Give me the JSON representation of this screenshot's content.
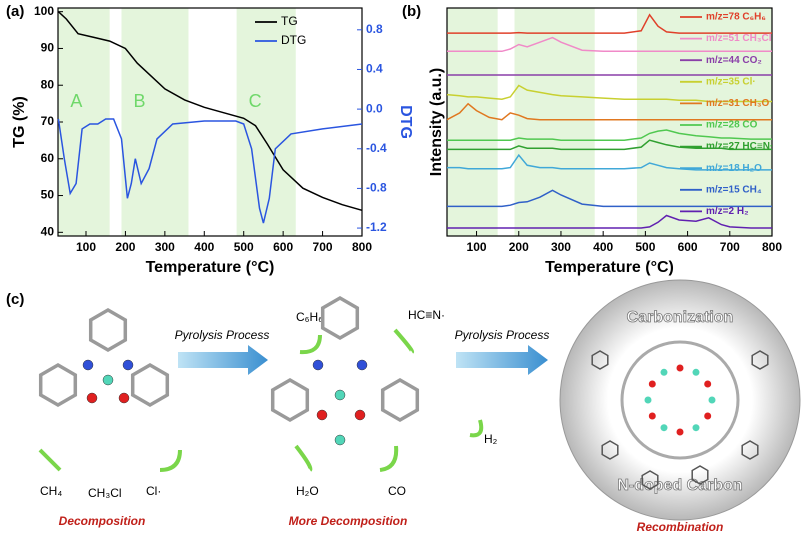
{
  "chart_data": [
    {
      "type": "line",
      "panel_label": "(a)",
      "xlabel": "Temperature (°C)",
      "ylabel": "TG (%)",
      "y2label": "DTG",
      "xlim": [
        29,
        800
      ],
      "ylim": [
        39,
        101
      ],
      "y2lim": [
        -1.28,
        1.02
      ],
      "xticks": [
        100,
        200,
        300,
        400,
        500,
        600,
        700,
        800
      ],
      "yticks": [
        40,
        50,
        60,
        70,
        80,
        90,
        100
      ],
      "y2ticks": [
        -1.2,
        -0.8,
        -0.4,
        {
          "value": 0,
          "label": "0.0"
        },
        0.4,
        0.8
      ],
      "legend": "upper center",
      "shaded_regions": [
        {
          "label": "A",
          "range": [
            30,
            160
          ]
        },
        {
          "label": "B",
          "range": [
            190,
            360
          ]
        },
        {
          "label": "C",
          "range": [
            482,
            632
          ]
        }
      ],
      "series": [
        {
          "name": "TG",
          "color": "#000000",
          "axis": "y",
          "x": [
            30,
            50,
            80,
            120,
            160,
            200,
            230,
            260,
            300,
            350,
            400,
            450,
            500,
            530,
            560,
            600,
            650,
            700,
            750,
            800
          ],
          "values": [
            100,
            98,
            94,
            93,
            92,
            90,
            86,
            83,
            79,
            76,
            74,
            72.5,
            71,
            69,
            64,
            57,
            52,
            49.5,
            47.5,
            46
          ]
        },
        {
          "name": "DTG",
          "color": "#2a55e0",
          "axis": "y2",
          "x": [
            30,
            45,
            60,
            75,
            90,
            110,
            130,
            150,
            170,
            190,
            205,
            215,
            225,
            240,
            260,
            280,
            320,
            400,
            480,
            500,
            520,
            540,
            550,
            565,
            580,
            620,
            700,
            800
          ],
          "values": [
            -0.1,
            -0.5,
            -0.85,
            -0.75,
            -0.2,
            -0.15,
            -0.15,
            -0.1,
            -0.1,
            -0.3,
            -0.9,
            -0.75,
            -0.5,
            -0.75,
            -0.6,
            -0.3,
            -0.15,
            -0.12,
            -0.12,
            -0.15,
            -0.4,
            -1.0,
            -1.15,
            -0.9,
            -0.4,
            -0.25,
            -0.2,
            -0.15
          ]
        }
      ]
    },
    {
      "type": "line",
      "panel_label": "(b)",
      "xlabel": "Temperature (°C)",
      "ylabel": "Intensity (a.u.)",
      "xlim": [
        30,
        800
      ],
      "ylim": [
        0,
        100
      ],
      "xticks": [
        100,
        200,
        300,
        400,
        500,
        600,
        700,
        800
      ],
      "legend": "right",
      "shaded_regions": [
        {
          "range": [
            30,
            150
          ]
        },
        {
          "range": [
            190,
            380
          ]
        },
        {
          "range": [
            480,
            800
          ]
        }
      ],
      "x": [
        30,
        60,
        80,
        100,
        130,
        160,
        180,
        200,
        220,
        250,
        280,
        300,
        350,
        400,
        450,
        490,
        510,
        530,
        550,
        580,
        620,
        650,
        680,
        700,
        750,
        800
      ],
      "series": [
        {
          "name": "m/z=78 C₆H₆",
          "color": "#e0402a",
          "values": [
            89,
            89,
            89,
            89,
            89,
            89,
            89,
            89.2,
            89,
            89,
            89,
            89,
            89,
            89,
            89,
            90,
            97,
            92,
            89.5,
            89,
            89,
            89,
            89,
            89,
            89,
            89
          ]
        },
        {
          "name": "m/z=51 CH₃Cl",
          "color": "#f08ac8",
          "values": [
            81,
            81,
            81,
            81,
            81,
            81,
            82,
            84,
            83,
            85,
            87,
            85,
            81.5,
            81,
            81,
            81,
            81,
            81,
            81,
            81,
            81,
            81,
            81,
            81,
            81,
            81
          ]
        },
        {
          "name": "m/z=44 CO₂",
          "color": "#8a3fa8",
          "values": [
            70.6,
            70.6,
            70.6,
            70.6,
            70.6,
            70.6,
            70.6,
            70.6,
            70.6,
            70.6,
            70.6,
            70.6,
            70.6,
            70.6,
            70.6,
            70.6,
            70.6,
            70.6,
            70.6,
            70.6,
            70.6,
            70.6,
            70.6,
            70.6,
            70.6,
            70.6
          ]
        },
        {
          "name": "m/z=35 Cl·",
          "color": "#c8d030",
          "values": [
            62,
            61.5,
            61,
            61,
            60.5,
            60,
            61,
            66,
            64,
            63,
            62,
            61.5,
            61,
            60.5,
            60,
            60,
            60,
            60,
            60,
            59.5,
            59.5,
            59,
            59,
            59,
            59,
            59
          ]
        },
        {
          "name": "m/z=31 CH₃O",
          "color": "#e07820",
          "values": [
            51,
            54,
            58,
            55,
            52,
            51,
            54,
            53,
            51.5,
            51,
            51,
            51,
            51,
            51,
            51,
            51,
            51,
            51,
            51,
            51,
            51,
            51,
            51,
            51,
            51,
            51
          ]
        },
        {
          "name": "m/z=28 CO",
          "color": "#50c850",
          "values": [
            42,
            42,
            42,
            42,
            42,
            42,
            42,
            43,
            42.5,
            42.5,
            42.5,
            42,
            42,
            42,
            42,
            43,
            45,
            46,
            46.5,
            45,
            44,
            43.5,
            43,
            43,
            42.5,
            42.5
          ]
        },
        {
          "name": "m/z=27 HC≡N·",
          "color": "#30a030",
          "values": [
            38,
            38,
            38,
            38,
            38,
            38,
            38,
            39.5,
            38.5,
            38.5,
            38.5,
            38,
            38,
            38,
            38,
            39,
            42,
            41,
            40,
            39,
            38.5,
            38.5,
            38.5,
            38,
            38,
            38
          ]
        },
        {
          "name": "m/z=18 H₂O",
          "color": "#40a8d8",
          "values": [
            30,
            30,
            29.5,
            29.5,
            29.5,
            29.5,
            30,
            35.5,
            31,
            30,
            30,
            29.5,
            29.5,
            29.5,
            29.5,
            30,
            32,
            31,
            30,
            29.5,
            29,
            29,
            29,
            29,
            29,
            29
          ]
        },
        {
          "name": "m/z=15 CH₄",
          "color": "#3060c8",
          "values": [
            13,
            13,
            13,
            13,
            13,
            13,
            13.5,
            14.7,
            15,
            17,
            20,
            18,
            14,
            13,
            13,
            13,
            13,
            13,
            13,
            13,
            13,
            13,
            13,
            13,
            13,
            13
          ]
        },
        {
          "name": "m/z=2  H₂",
          "color": "#6020b0",
          "values": [
            3.5,
            3.5,
            3.5,
            3.5,
            3.5,
            3.5,
            3.5,
            3.5,
            3.5,
            3.5,
            3.5,
            3.5,
            3.5,
            3.5,
            3.5,
            3.5,
            4,
            6,
            9,
            7,
            6.5,
            8,
            5,
            4,
            3.5,
            3.5
          ]
        }
      ]
    }
  ],
  "diagram": {
    "panel_label": "(c)",
    "arrow_labels": [
      "Pyrolysis Process",
      "Pyrolysis Process"
    ],
    "species": [
      "CH₄",
      "CH₃Cl",
      "Cl·",
      "C₆H₆",
      "HC≡N·",
      "H₂",
      "H₂O",
      "CO"
    ],
    "stages": [
      "Decomposition",
      "More Decomposition",
      "Recombination"
    ],
    "ring_labels": [
      "Carbonization",
      "N-doped Carbon"
    ]
  }
}
